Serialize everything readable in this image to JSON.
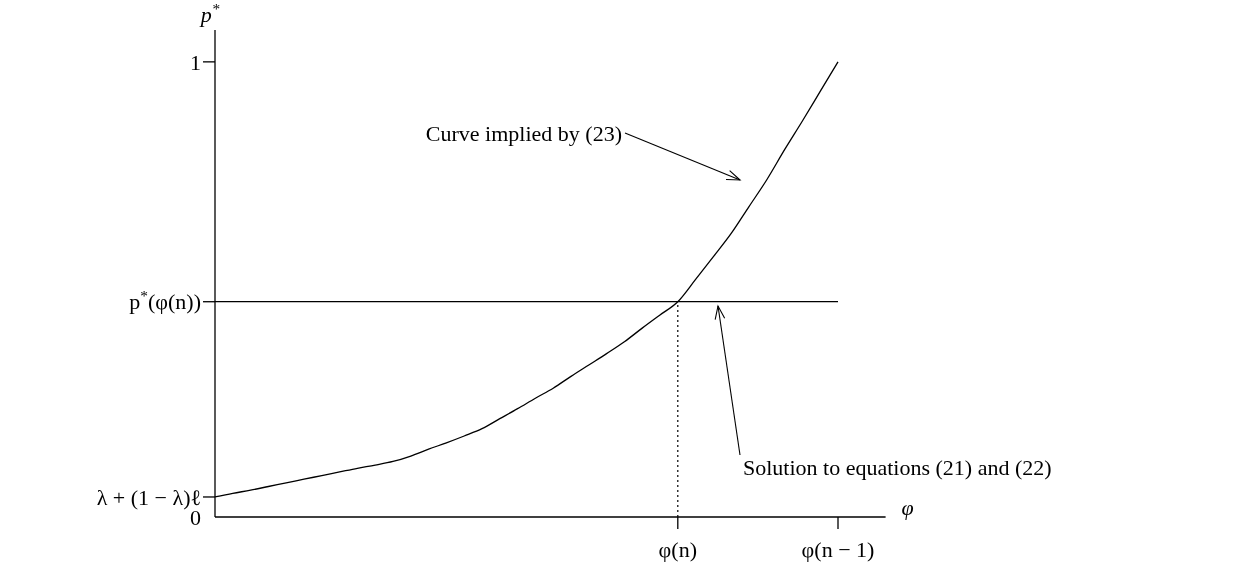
{
  "chart_data": {
    "type": "line",
    "xlabel": "φ",
    "ylabel": "p$^{*}$",
    "ylim": [
      0,
      1.07
    ],
    "yticks": [
      0,
      1
    ],
    "categories": [
      null,
      null,
      null,
      null,
      null,
      null,
      null,
      null,
      null,
      null,
      null,
      null,
      null,
      null,
      null,
      null,
      null,
      null,
      null,
      null,
      null,
      null,
      null,
      null,
      null,
      null,
      "φ(n)",
      null,
      null,
      null,
      null,
      null,
      null,
      null,
      null,
      "φ(n − 1)",
      null,
      null
    ],
    "series": [
      {
        "color": "#000000",
        "values": [
          0.044,
          0.052,
          0.059,
          0.067,
          0.075,
          0.083,
          0.091,
          0.099,
          0.107,
          0.114,
          0.122,
          0.134,
          0.149,
          0.163,
          0.178,
          0.194,
          0.216,
          0.238,
          0.261,
          0.283,
          0.309,
          0.334,
          0.359,
          0.385,
          0.415,
          0.444,
          0.473,
          0.522,
          0.572,
          0.623,
          0.682,
          0.741,
          0.807,
          0.87,
          0.935,
          1,
          null,
          null
        ]
      },
      {
        "color": "#000000",
        "values": [
          0.473,
          0.473,
          0.473,
          0.473,
          0.473,
          0.473,
          0.473,
          0.473,
          0.473,
          0.473,
          0.473,
          0.473,
          0.473,
          0.473,
          0.473,
          0.473,
          0.473,
          0.473,
          0.473,
          0.473,
          0.473,
          0.473,
          0.473,
          0.473,
          0.473,
          0.473,
          0.473,
          0.473,
          0.473,
          0.473,
          0.473,
          0.473,
          0.473,
          0.473,
          0.473,
          0.473,
          null,
          null
        ]
      }
    ],
    "ref_lines": [
      {
        "axis": "x",
        "value": "φ(n)",
        "line_style": "dotted",
        "color": "#000000"
      }
    ],
    "annotations": [
      "λ + (1 − λ)ℓ",
      "p$^{*}$(φ(n))",
      "Curve implied by (23)",
      "Solution to equations (21) and (22)"
    ]
  }
}
